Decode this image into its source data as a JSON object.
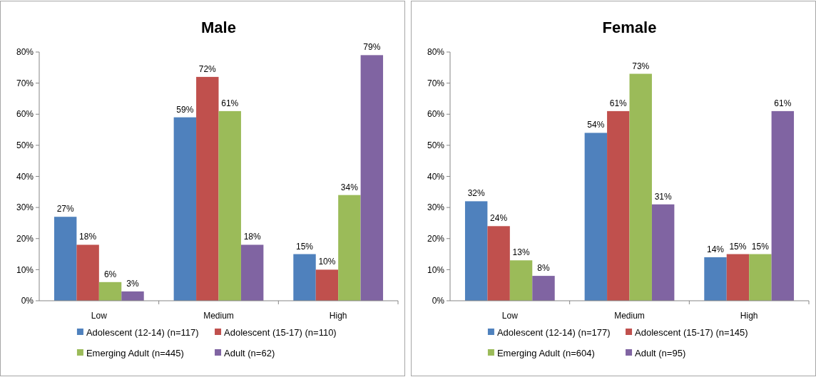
{
  "chart_data": [
    {
      "type": "bar",
      "title": "Male",
      "categories": [
        "Low",
        "Medium",
        "High"
      ],
      "series": [
        {
          "name": "Adolescent (12-14) (n=117)",
          "color": "#4f81bd",
          "values": [
            27,
            59,
            15
          ],
          "value_labels": [
            "27%",
            "59%",
            "15%"
          ]
        },
        {
          "name": "Adolescent (15-17) (n=110)",
          "color": "#c0504d",
          "values": [
            18,
            72,
            10
          ],
          "value_labels": [
            "18%",
            "72%",
            "10%"
          ]
        },
        {
          "name": "Emerging Adult (n=445)",
          "color": "#9bbb59",
          "values": [
            6,
            61,
            34
          ],
          "value_labels": [
            "6%",
            "61%",
            "34%"
          ]
        },
        {
          "name": "Adult (n=62)",
          "color": "#8064a2",
          "values": [
            3,
            18,
            79
          ],
          "value_labels": [
            "3%",
            "18%",
            "79%"
          ]
        }
      ],
      "ylim": [
        0,
        80
      ],
      "yticks": [
        {
          "value": 0,
          "label": "0%"
        },
        {
          "value": 10,
          "label": "10%"
        },
        {
          "value": 20,
          "label": "20%"
        },
        {
          "value": 30,
          "label": "30%"
        },
        {
          "value": 40,
          "label": "40%"
        },
        {
          "value": 50,
          "label": "50%"
        },
        {
          "value": 60,
          "label": "60%"
        },
        {
          "value": 70,
          "label": "70%"
        },
        {
          "value": 80,
          "label": "80%"
        }
      ],
      "grid": false,
      "legend": "bottom"
    },
    {
      "type": "bar",
      "title": "Female",
      "categories": [
        "Low",
        "Medium",
        "High"
      ],
      "series": [
        {
          "name": "Adolescent (12-14) (n=177)",
          "color": "#4f81bd",
          "values": [
            32,
            54,
            14
          ],
          "value_labels": [
            "32%",
            "54%",
            "14%"
          ]
        },
        {
          "name": "Adolescent (15-17) (n=145)",
          "color": "#c0504d",
          "values": [
            24,
            61,
            15
          ],
          "value_labels": [
            "24%",
            "61%",
            "15%"
          ]
        },
        {
          "name": "Emerging Adult (n=604)",
          "color": "#9bbb59",
          "values": [
            13,
            73,
            15
          ],
          "value_labels": [
            "13%",
            "73%",
            "15%"
          ]
        },
        {
          "name": "Adult (n=95)",
          "color": "#8064a2",
          "values": [
            8,
            31,
            61
          ],
          "value_labels": [
            "8%",
            "31%",
            "61%"
          ]
        }
      ],
      "ylim": [
        0,
        80
      ],
      "yticks": [
        {
          "value": 0,
          "label": "0%"
        },
        {
          "value": 10,
          "label": "10%"
        },
        {
          "value": 20,
          "label": "20%"
        },
        {
          "value": 30,
          "label": "30%"
        },
        {
          "value": 40,
          "label": "40%"
        },
        {
          "value": 50,
          "label": "50%"
        },
        {
          "value": 60,
          "label": "60%"
        },
        {
          "value": 70,
          "label": "70%"
        },
        {
          "value": 80,
          "label": "80%"
        }
      ],
      "grid": false,
      "legend": "bottom"
    }
  ]
}
